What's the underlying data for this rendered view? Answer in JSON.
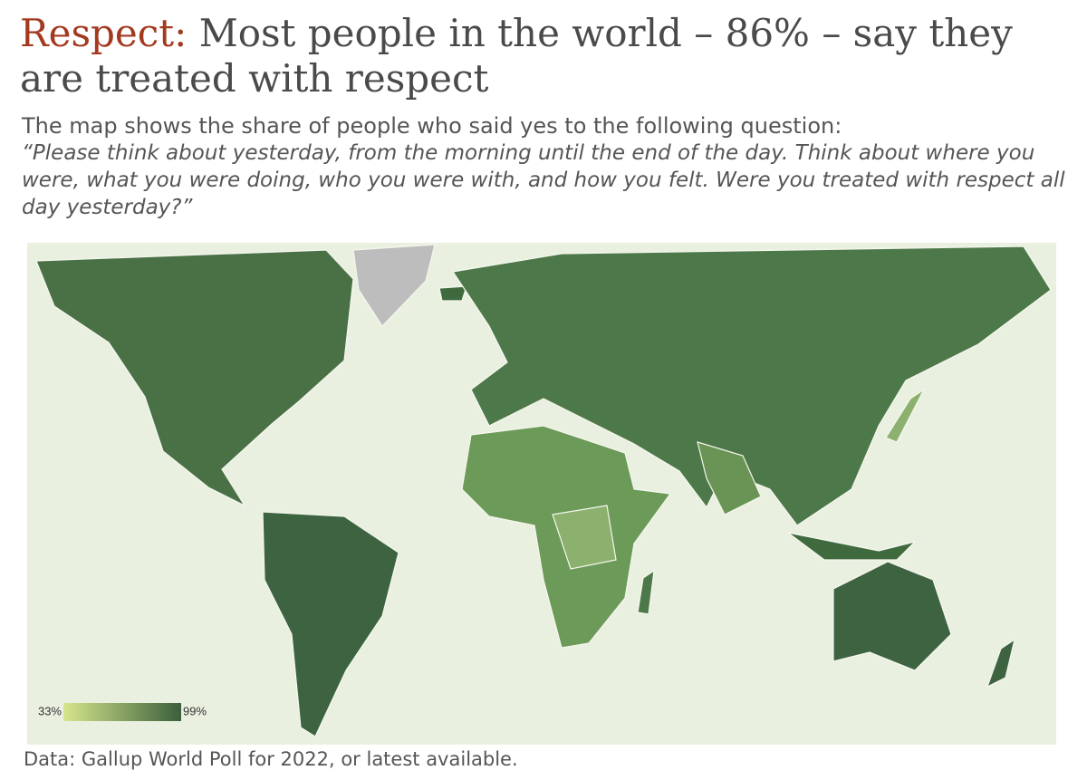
{
  "header": {
    "title_highlight": "Respect:",
    "title": "Most people in the world – 86% – say they are treated with respect",
    "subtitle": "The map shows the share of people who said yes to the following question:",
    "question": "“Please think about yesterday, from the morning until the end of the day. Think about where you were, what you were doing, who you were with, and how you felt. Were you treated with respect all day yesterday?”"
  },
  "map": {
    "legend": {
      "min": {
        "value": 33,
        "label": "33%"
      },
      "max": {
        "value": 99,
        "label": "99%"
      },
      "colors": [
        "#d6e68c",
        "#3b5f3c"
      ]
    }
  },
  "footer": {
    "source": "Data: Gallup World Poll for 2022, or latest available."
  }
}
